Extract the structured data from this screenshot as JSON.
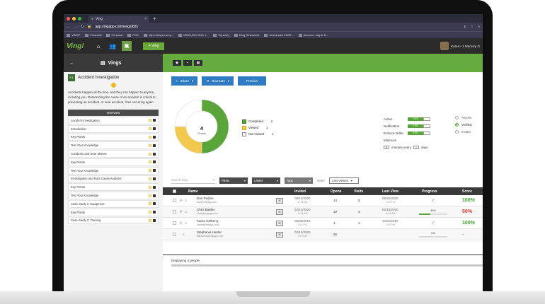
{
  "browser": {
    "tab_title": "Ving",
    "tab_close": "×",
    "new_tab": "+",
    "url": "app.vingapp.com/vings/831",
    "bookmarks": [
      "VINGP",
      "Financial",
      "Personal",
      "POC",
      "https://trayon.amp...",
      "INBOUND 2018, I...",
      "Squarely",
      "Blog Resources",
      "Unbranded 25/30...",
      "Account - Apple D..."
    ]
  },
  "app": {
    "logo": "Ving!",
    "new_ving_button": "+ Ving",
    "user_name": "Karen • 1 Memory G",
    "back": "←",
    "section_title": "Vings",
    "toolbar_icons": [
      "tag-icon",
      "save-icon",
      "grid-icon"
    ]
  },
  "sidebar": {
    "badge": "E1",
    "title": "Accident Investigation",
    "description": "Accidents happen all the time, and they can happen to anyone, including you. Determining the cause of an accident is critical to preventing an accident, or near accident, from occurring again.",
    "overview_label": "Overview",
    "items": [
      {
        "label": "Accident Investigation"
      },
      {
        "label": "Introduction"
      },
      {
        "label": "Key Points"
      },
      {
        "label": "Test Your Knowledge"
      },
      {
        "label": "Accidents and Near Misses"
      },
      {
        "label": "Key Points"
      },
      {
        "label": "Test Your Knowledge"
      },
      {
        "label": "Investigation and Root Cause Analysis"
      },
      {
        "label": "Key Points"
      },
      {
        "label": "Test Your Knowledge"
      },
      {
        "label": "Case Study 1: Equipment"
      },
      {
        "label": "Key Points"
      },
      {
        "label": "Case Study 2: Training"
      }
    ]
  },
  "actions": {
    "share": "Share",
    "recreate": "Recreate",
    "preview": "Preview"
  },
  "donut": {
    "center_value": "4",
    "center_label": "People",
    "segments": [
      {
        "name": "Completed",
        "value": 2,
        "color": "#5aa53a"
      },
      {
        "name": "Viewed",
        "value": 1,
        "color": "#f2c94c"
      },
      {
        "name": "Not Viewed",
        "value": 1,
        "color": "#ffffff"
      }
    ]
  },
  "settings": {
    "rows": [
      {
        "label": "Active",
        "value": "YES"
      },
      {
        "label": "Notification",
        "value": "YES"
      },
      {
        "label": "Enforce Order",
        "value": "YES"
      }
    ],
    "minimum_label": "Minimum",
    "minimum_value": "5",
    "minimum_text": "minutes every",
    "minimum_days": "1",
    "minimum_unit": "days",
    "radios": [
      {
        "label": "Anyone",
        "selected": false
      },
      {
        "label": "Verified",
        "selected": true
      },
      {
        "label": "Invited",
        "selected": false
      }
    ]
  },
  "filters": {
    "search_placeholder": "Search Ving...",
    "filters": "Filters",
    "labels": "Labels",
    "tags": "Tags",
    "sort_label": "SORT",
    "sort_value": "Last Viewed"
  },
  "table": {
    "headers": {
      "name": "Name",
      "invited": "Invited",
      "opens": "Opens",
      "visits": "Visits",
      "last_view": "Last View",
      "progress": "Progress",
      "score": "Score"
    },
    "rows": [
      {
        "name": "Don Pedrini",
        "email": "don@vingapp.com",
        "invited_date": "08/13/2020",
        "invited_time": "11:28 AM",
        "opens": "14",
        "visits": "5",
        "last_date": "08/26/2020",
        "last_time": "3:09 PM",
        "progress_text": "",
        "progress": 1,
        "done": true,
        "score": "100%",
        "score_class": "g"
      },
      {
        "name": "Chris Battles",
        "email": "chris@vingapp.com",
        "invited_date": "02/13/2020",
        "invited_time": "10:56 AM",
        "opens": "10",
        "visits": "4",
        "last_date": "02/13/2020",
        "last_time": "11:02 AM",
        "progress_text": "40%",
        "progress": 0.4,
        "done": false,
        "score": "50%",
        "score_class": "r"
      },
      {
        "name": "Karen Gelberry",
        "email": "karen@vingapp.com",
        "invited_date": "09/05/2019",
        "invited_time": "3:18 PM",
        "opens": "4",
        "visits": "1",
        "last_date": "10/31/2019",
        "last_time": "1:19 PM",
        "progress_text": "",
        "progress": 1,
        "done": true,
        "score": "100%",
        "score_class": "g"
      },
      {
        "name": "Stephanie Hunter",
        "email": "stephanie@vingapp.com",
        "invited_date": "02/13/2020",
        "invited_time": "9:03 AM",
        "opens": "26",
        "visits": "",
        "last_date": "",
        "last_time": "",
        "progress_text": "0%",
        "progress": 0,
        "done": false,
        "score": "--",
        "score_class": ""
      }
    ]
  },
  "footer": {
    "text": "Displaying 4 people"
  }
}
